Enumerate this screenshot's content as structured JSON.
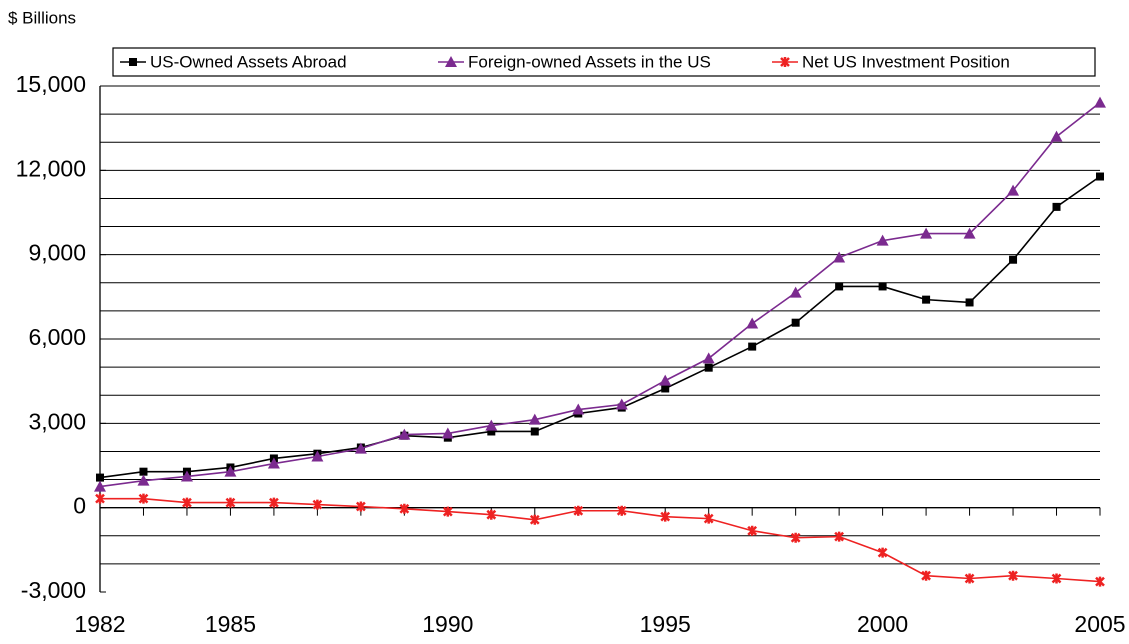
{
  "chart_data": {
    "type": "line",
    "y_axis_label": "$ Billions",
    "x": [
      1982,
      1983,
      1984,
      1985,
      1986,
      1987,
      1988,
      1989,
      1990,
      1991,
      1992,
      1993,
      1994,
      1995,
      1996,
      1997,
      1998,
      1999,
      2000,
      2001,
      2002,
      2003,
      2004,
      2005
    ],
    "series": [
      {
        "name": "US-Owned Assets Abroad",
        "color": "#000000",
        "marker": "square",
        "values": [
          1070,
          1280,
          1280,
          1430,
          1750,
          1920,
          2140,
          2560,
          2490,
          2710,
          2710,
          3350,
          3560,
          4240,
          4980,
          5730,
          6580,
          7870,
          7870,
          7400,
          7300,
          8820,
          10700,
          11780
        ]
      },
      {
        "name": "Foreign-owned Assets in the US",
        "color": "#7b2a8f",
        "marker": "triangle",
        "values": [
          750,
          960,
          1110,
          1280,
          1570,
          1820,
          2100,
          2600,
          2640,
          2920,
          3130,
          3490,
          3670,
          4520,
          5310,
          6550,
          7650,
          8900,
          9500,
          9750,
          9750,
          11280,
          13200,
          14410
        ]
      },
      {
        "name": "Net US Investment Position",
        "color": "#ee2222",
        "marker": "star",
        "values": [
          320,
          320,
          180,
          180,
          180,
          110,
          40,
          -40,
          -140,
          -250,
          -430,
          -110,
          -110,
          -320,
          -390,
          -820,
          -1070,
          -1030,
          -1600,
          -2420,
          -2520,
          -2420,
          -2520,
          -2630
        ]
      }
    ],
    "xlim": [
      1982,
      2005
    ],
    "xticks": [
      1982,
      1985,
      1990,
      1995,
      2000,
      2005
    ],
    "ylim": [
      -3000,
      15000
    ],
    "yticks": [
      {
        "value": -3000,
        "label": "-3,000"
      },
      0,
      {
        "value": 3000,
        "label": "3,000"
      },
      {
        "value": 6000,
        "label": "6,000"
      },
      {
        "value": 9000,
        "label": "9,000"
      },
      {
        "value": 12000,
        "label": "12,000"
      },
      {
        "value": 15000,
        "label": "15,000"
      }
    ],
    "grid_yticks": [
      -2000,
      -1000,
      1000,
      2000,
      3000,
      4000,
      5000,
      6000,
      7000,
      8000,
      9000,
      10000,
      11000,
      12000,
      13000,
      14000,
      15000
    ],
    "grid": true,
    "legend": "top"
  }
}
